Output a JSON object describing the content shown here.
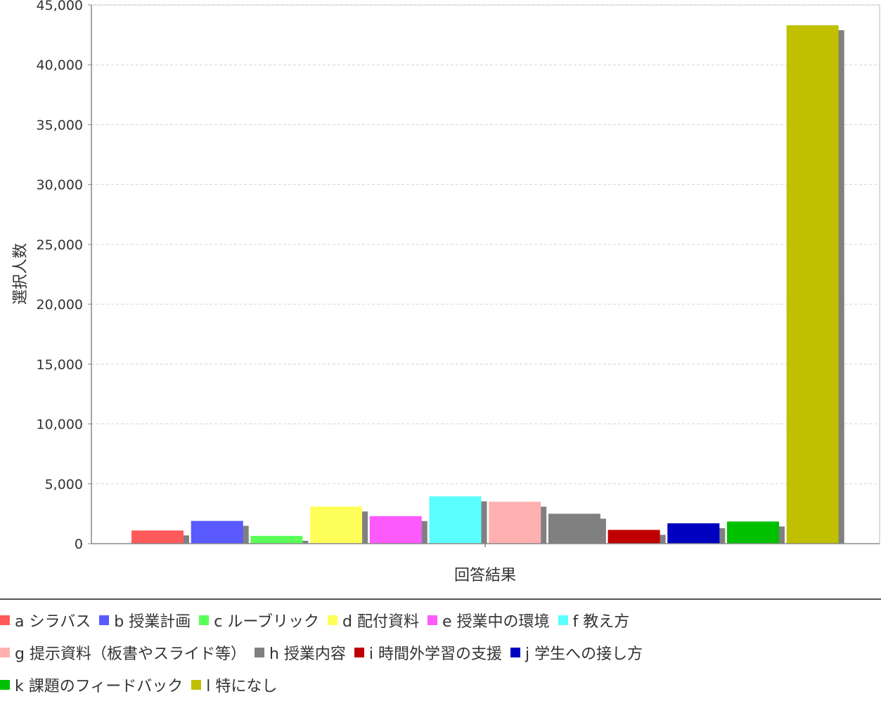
{
  "chart_data": {
    "type": "bar",
    "title": "",
    "xlabel": "回答結果",
    "ylabel": "選択人数",
    "ylim": [
      0,
      45000
    ],
    "yticks": [
      "0",
      "5,000",
      "10,000",
      "15,000",
      "20,000",
      "25,000",
      "30,000",
      "35,000",
      "40,000",
      "45,000"
    ],
    "grid": true,
    "legend_position": "bottom",
    "categories": [
      "a シラバス",
      "b 授業計画",
      "c ルーブリック",
      "d 配付資料",
      "e 授業中の環境",
      "f 教え方",
      "g 提示資料（板書やスライド等）",
      "h 授業内容",
      "i 時間外学習の支援",
      "j 学生への接し方",
      "k 課題のフィードバック",
      "l 特になし"
    ],
    "values": [
      1100,
      1900,
      650,
      3100,
      2300,
      3950,
      3500,
      2500,
      1150,
      1700,
      1850,
      43300
    ],
    "colors": [
      "#ff5a5a",
      "#5a5aff",
      "#5aff5a",
      "#ffff5a",
      "#ff5aff",
      "#5affff",
      "#ffb0b0",
      "#808080",
      "#c00000",
      "#0000c0",
      "#00c000",
      "#c0c000"
    ]
  }
}
